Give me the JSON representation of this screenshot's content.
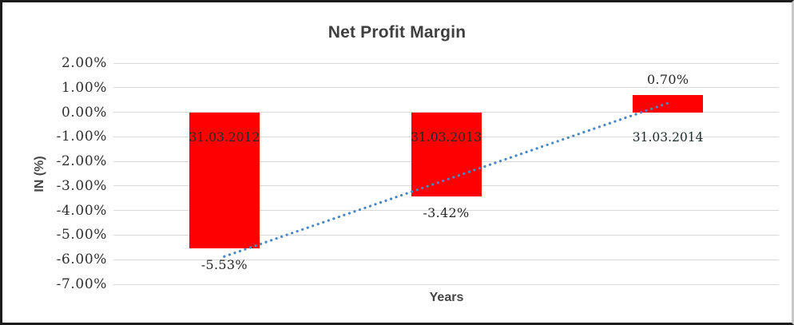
{
  "chart_data": {
    "type": "bar",
    "title": "Net Profit Margin",
    "xlabel": "Years",
    "ylabel": "IN (%)",
    "categories": [
      "31.03.2012",
      "31.03.2013",
      "31.03.2014"
    ],
    "values": [
      -5.53,
      -3.42,
      0.7
    ],
    "data_labels": [
      "-5.53%",
      "-3.42%",
      "0.70%"
    ],
    "y_ticks": [
      "2.00%",
      "1.00%",
      "0.00%",
      "-1.00%",
      "-2.00%",
      "-3.00%",
      "-4.00%",
      "-5.00%",
      "-6.00%",
      "-7.00%"
    ],
    "ylim": [
      -7,
      2
    ],
    "grid": true,
    "legend": "none",
    "bar_color": "#ff0000",
    "trendline": {
      "type": "linear",
      "style": "dotted",
      "color": "#4a87c7",
      "start_value": -5.87,
      "end_value": 0.37
    }
  }
}
